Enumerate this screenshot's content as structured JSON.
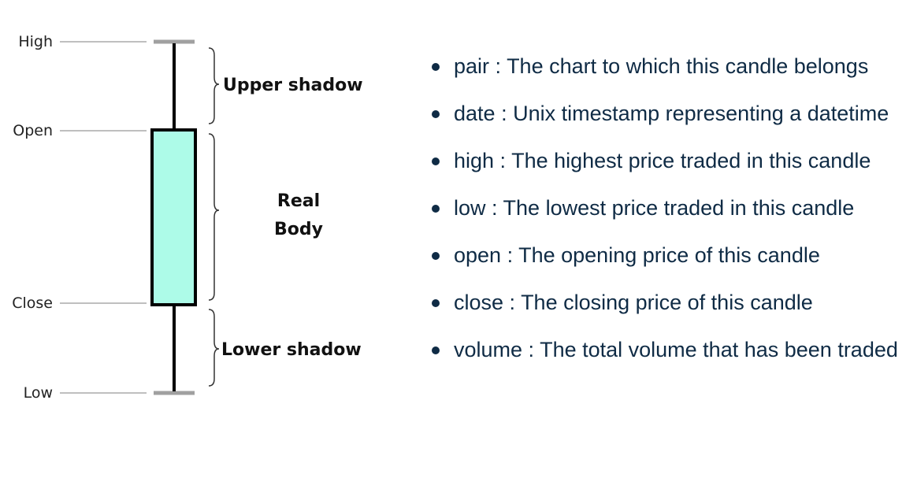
{
  "diagram": {
    "levels": {
      "high": "High",
      "open": "Open",
      "close": "Close",
      "low": "Low"
    },
    "segments": {
      "upper_shadow": "Upper shadow",
      "real_body_line1": "Real",
      "real_body_line2": "Body",
      "lower_shadow": "Lower shadow"
    },
    "colors": {
      "body_fill": "#adfbe8",
      "outline": "#000000",
      "guide": "#bfbfbf"
    }
  },
  "fields": [
    {
      "name": "pair",
      "desc": "The chart to which this candle belongs"
    },
    {
      "name": "date",
      "desc": "Unix timestamp representing a datetime"
    },
    {
      "name": "high",
      "desc": "The highest price traded in this candle"
    },
    {
      "name": "low",
      "desc": "The lowest price traded in this candle"
    },
    {
      "name": "open",
      "desc": "The opening price of this candle"
    },
    {
      "name": "close",
      "desc": "The closing price of this candle"
    },
    {
      "name": "volume",
      "desc": "The total volume that has been traded"
    }
  ]
}
